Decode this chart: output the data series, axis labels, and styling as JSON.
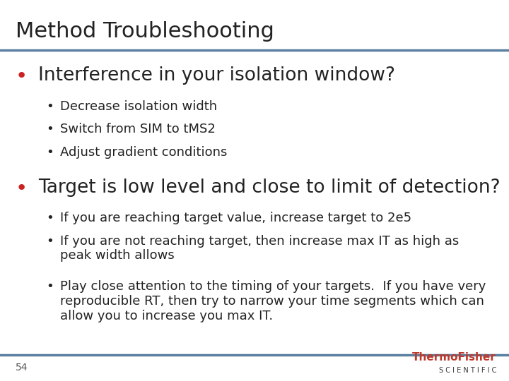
{
  "title": "Method Troubleshooting",
  "title_fontsize": 22,
  "title_color": "#222222",
  "title_font": "sans-serif",
  "bg_color": "#ffffff",
  "top_line_color": "#5a7fa0",
  "bottom_line_color": "#5a7fa0",
  "bullet_color": "#cc2222",
  "page_number": "54",
  "logo_text1": "ThermoFisher",
  "logo_text2": "S C I E N T I F I C",
  "logo_color": "#c0392b",
  "logo_sub_color": "#333333",
  "sections": [
    {
      "bullet": "•",
      "text": "Interference in your isolation window?",
      "fontsize": 19,
      "sub_items": [
        {
          "text": "Decrease isolation width",
          "fontsize": 13
        },
        {
          "text": "Switch from SIM to tMS2",
          "fontsize": 13
        },
        {
          "text": "Adjust gradient conditions",
          "fontsize": 13
        }
      ]
    },
    {
      "bullet": "•",
      "text": "Target is low level and close to limit of detection?",
      "fontsize": 19,
      "sub_items": [
        {
          "text": "If you are reaching target value, increase target to 2e5",
          "fontsize": 13
        },
        {
          "text": "If you are not reaching target, then increase max IT as high as\npeak width allows",
          "fontsize": 13
        },
        {
          "text": "Play close attention to the timing of your targets.  If you have very\nreproducible RT, then try to narrow your time segments which can\nallow you to increase you max IT.",
          "fontsize": 13
        }
      ]
    }
  ]
}
